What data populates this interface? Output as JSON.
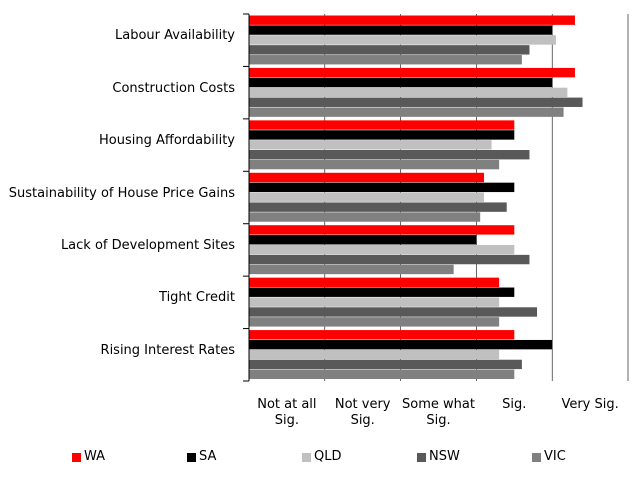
{
  "chart_data": {
    "type": "hbar",
    "categories": [
      "Labour Availability",
      "Construction Costs",
      "Housing Affordability",
      "Sustainability of House Price Gains",
      "Lack of Development Sites",
      "Tight Credit",
      "Rising Interest Rates"
    ],
    "series": [
      {
        "name": "WA",
        "color": "#ff0000",
        "values": [
          4.3,
          4.3,
          3.5,
          3.1,
          3.5,
          3.3,
          3.5
        ]
      },
      {
        "name": "SA",
        "color": "#000000",
        "values": [
          4.0,
          4.0,
          3.5,
          3.5,
          3.0,
          3.5,
          4.0
        ]
      },
      {
        "name": "QLD",
        "color": "#c0c0c0",
        "values": [
          4.05,
          4.2,
          3.2,
          3.1,
          3.5,
          3.3,
          3.3
        ]
      },
      {
        "name": "NSW",
        "color": "#595959",
        "values": [
          3.7,
          4.4,
          3.7,
          3.4,
          3.7,
          3.8,
          3.6
        ]
      },
      {
        "name": "VIC",
        "color": "#808080",
        "values": [
          3.6,
          4.15,
          3.3,
          3.05,
          2.7,
          3.3,
          3.5
        ]
      }
    ],
    "xlim": [
      0,
      5
    ],
    "xticks": [
      {
        "value": 0.5,
        "label": "Not at all Sig."
      },
      {
        "value": 1.5,
        "label": "Not very Sig."
      },
      {
        "value": 2.5,
        "label": "Some what Sig."
      },
      {
        "value": 3.5,
        "label": "Sig."
      },
      {
        "value": 4.5,
        "label": "Very Sig."
      }
    ],
    "grid": true,
    "legend": "bottom"
  }
}
